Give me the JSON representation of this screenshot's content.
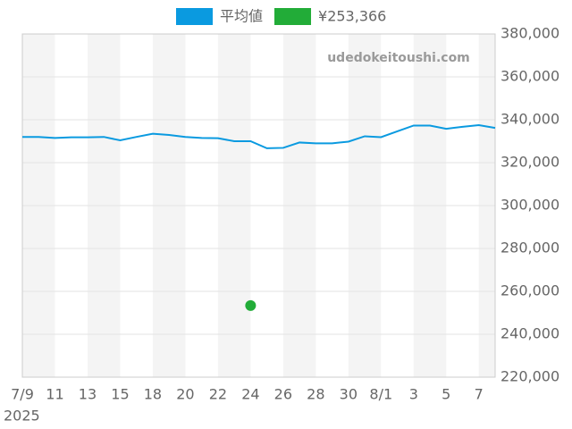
{
  "chart_data": {
    "type": "line",
    "watermark": "udedokeitoushi.com",
    "categories": [
      "7/9",
      null,
      "11",
      null,
      "13",
      null,
      "15",
      null,
      "18",
      null,
      "20",
      null,
      "22",
      null,
      "24",
      null,
      "26",
      null,
      "28",
      null,
      "30",
      null,
      "8/1",
      null,
      "3",
      null,
      "5",
      null,
      "7",
      null
    ],
    "x_sublabel": "2025",
    "series": [
      {
        "name": "平均値",
        "type": "line",
        "color": "#0a9ae0",
        "values": [
          332000,
          332000,
          331500,
          331800,
          331800,
          332000,
          330400,
          332000,
          333500,
          332900,
          332000,
          331500,
          331400,
          330000,
          330000,
          326700,
          326900,
          329400,
          329000,
          329000,
          329800,
          332300,
          331900,
          334600,
          337300,
          337300,
          335800,
          336700,
          337500,
          336200
        ]
      },
      {
        "name": "¥253,366",
        "type": "scatter",
        "color": "#22ac38",
        "values": [
          null,
          null,
          null,
          null,
          null,
          null,
          null,
          null,
          null,
          null,
          null,
          null,
          null,
          null,
          253366,
          null,
          null,
          null,
          null,
          null,
          null,
          null,
          null,
          null,
          null,
          null,
          null,
          null,
          null,
          null
        ]
      }
    ],
    "ylim": [
      220000,
      380000
    ],
    "yticks": [
      {
        "value": 220000,
        "label": "220,000"
      },
      {
        "value": 240000,
        "label": "240,000"
      },
      {
        "value": 260000,
        "label": "260,000"
      },
      {
        "value": 280000,
        "label": "280,000"
      },
      {
        "value": 300000,
        "label": "300,000"
      },
      {
        "value": 320000,
        "label": "320,000"
      },
      {
        "value": 340000,
        "label": "340,000"
      },
      {
        "value": 360000,
        "label": "360,000"
      },
      {
        "value": 380000,
        "label": "380,000"
      }
    ],
    "grid": true
  }
}
